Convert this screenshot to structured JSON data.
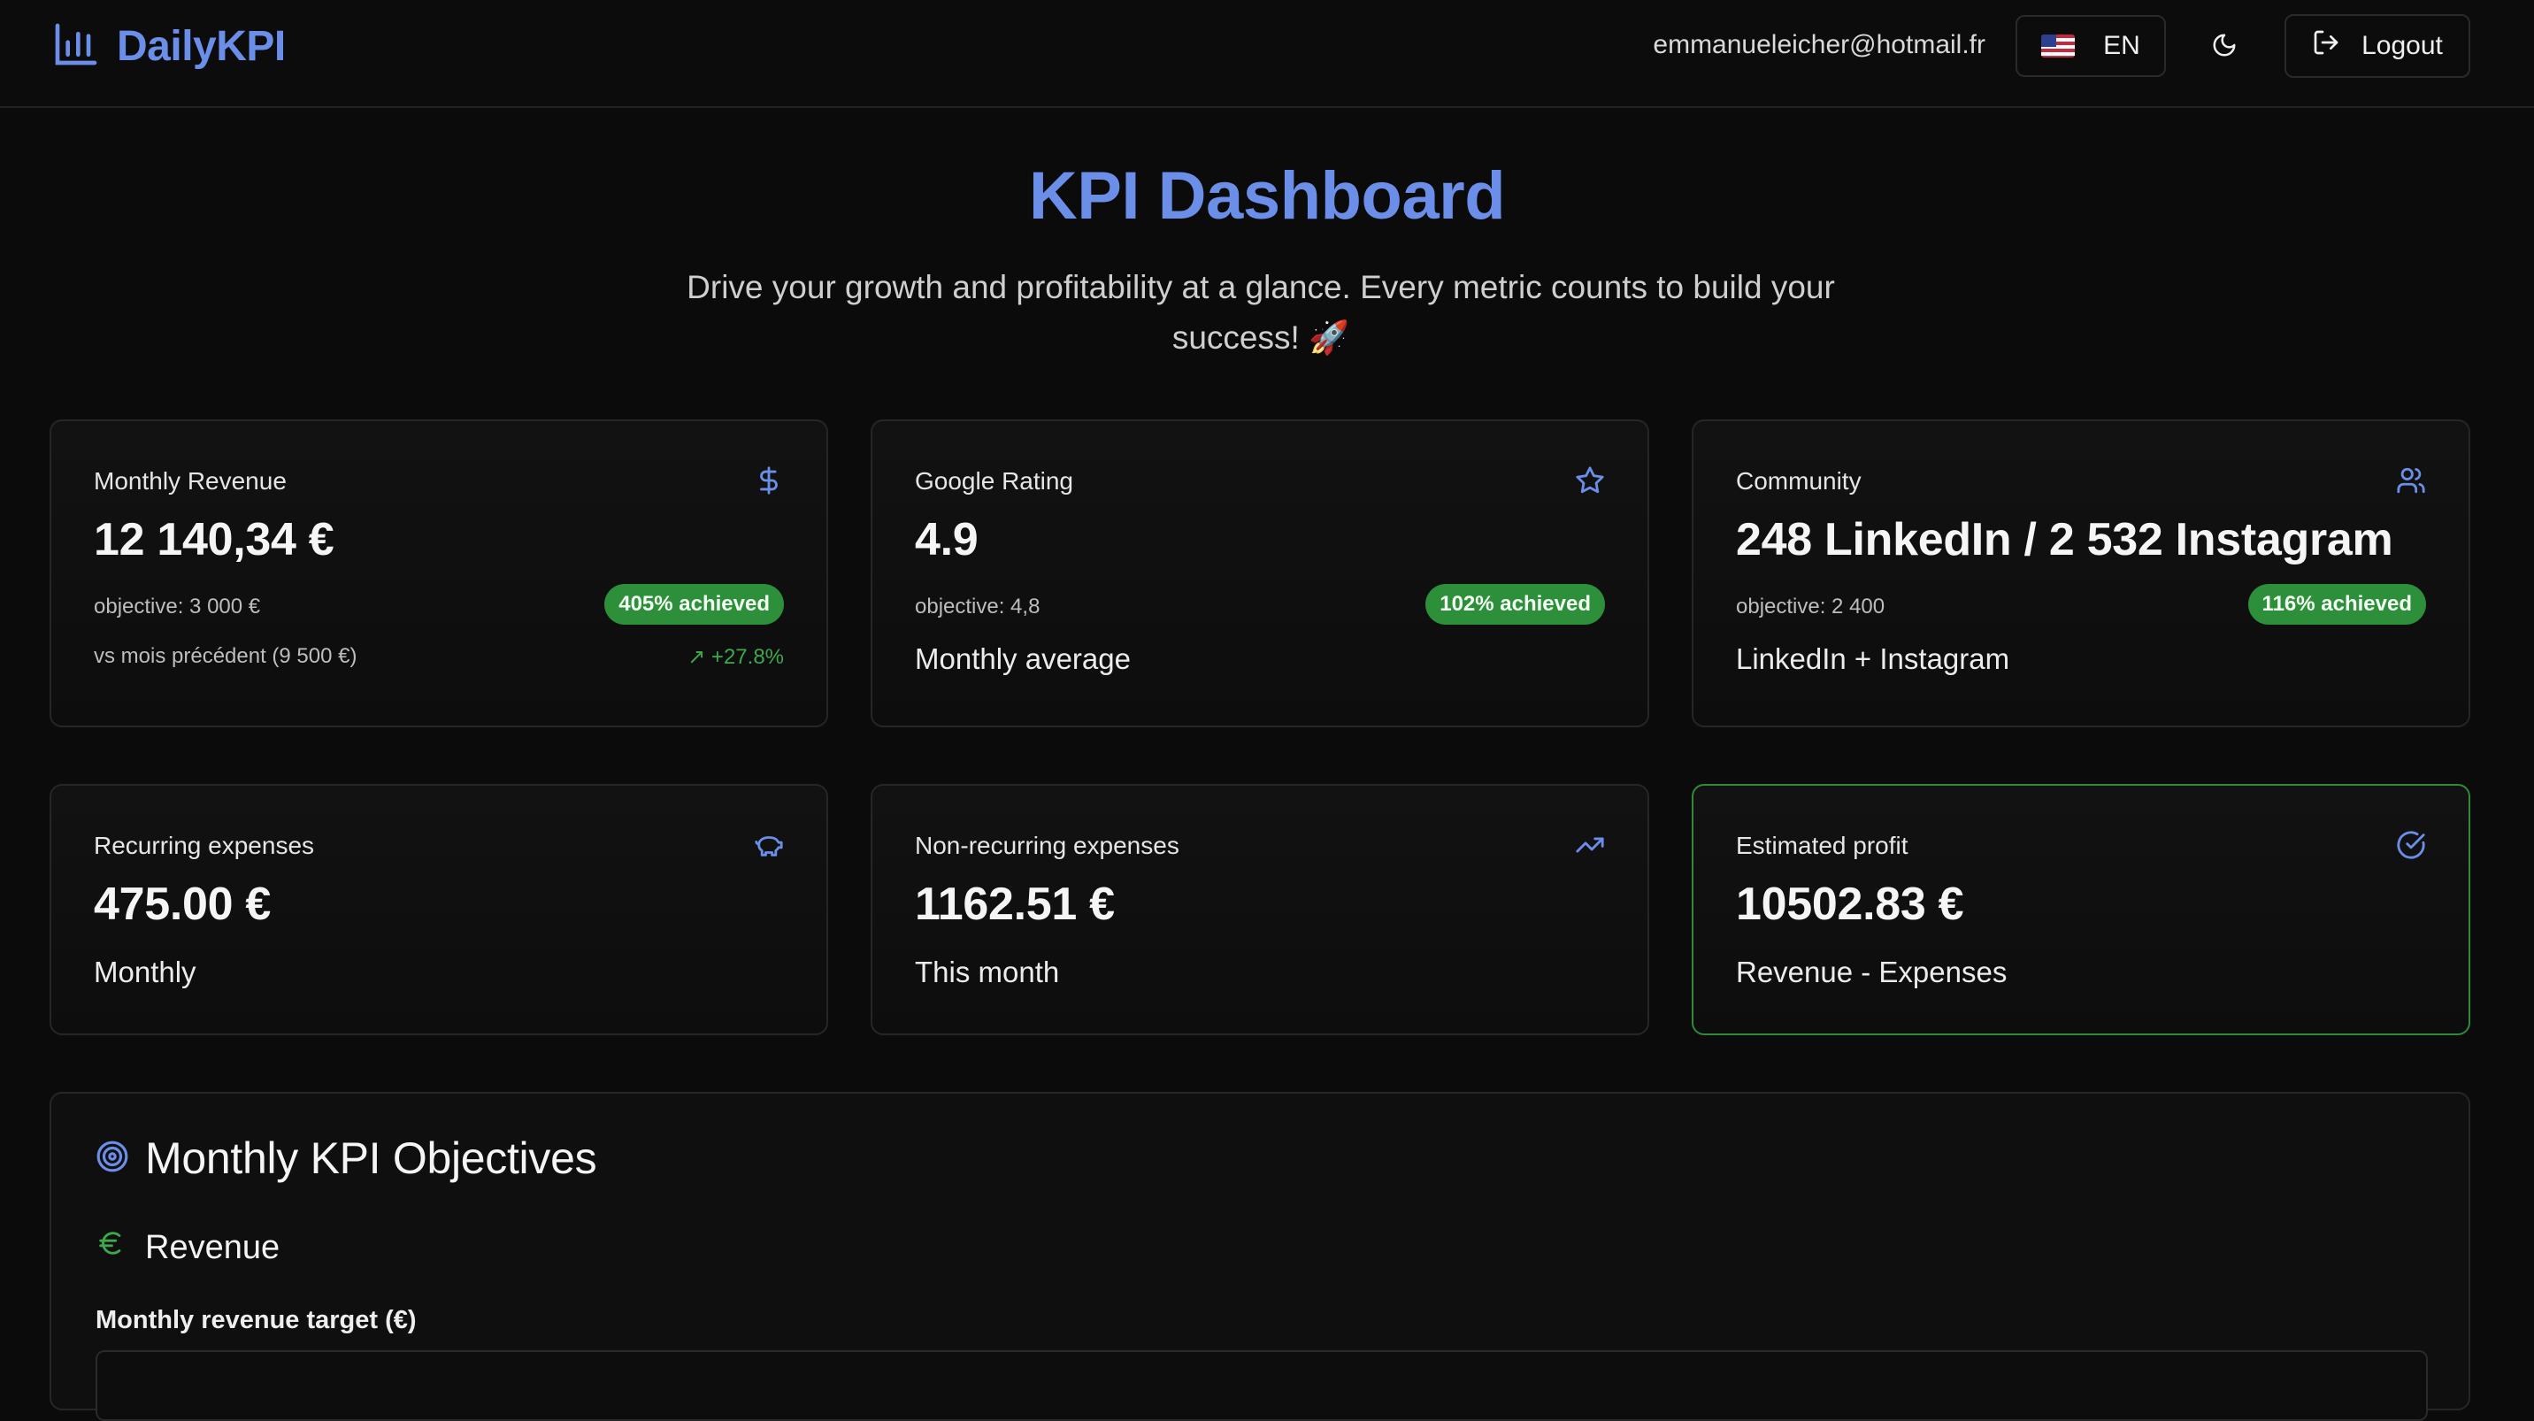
{
  "app": {
    "brand_name": "DailyKPI",
    "user_email": "emmanueleicher@hotmail.fr",
    "language_label": "EN",
    "logout_label": "Logout",
    "accent_color": "#6b8ee8",
    "success_color": "#2e8f3b"
  },
  "hero": {
    "title": "KPI Dashboard",
    "subtitle": "Drive your growth and profitability at a glance. Every metric counts to build your success! 🚀"
  },
  "cards": {
    "revenue": {
      "label": "Monthly Revenue",
      "icon": "dollar-icon",
      "value": "12 140,34 €",
      "objective": "objective: 3 000 €",
      "badge": "405% achieved",
      "compare": "vs mois précédent (9 500 €)",
      "delta": "↗ +27.8%"
    },
    "rating": {
      "label": "Google Rating",
      "icon": "star-icon",
      "value": "4.9",
      "objective": "objective: 4,8",
      "badge": "102% achieved",
      "note": "Monthly average"
    },
    "community": {
      "label": "Community",
      "icon": "users-icon",
      "value": "248 LinkedIn / 2 532 Instagram",
      "objective": "objective: 2 400",
      "badge": "116% achieved",
      "note": "LinkedIn + Instagram"
    },
    "recurring": {
      "label": "Recurring expenses",
      "icon": "piggy-bank-icon",
      "value": "475.00 €",
      "note": "Monthly"
    },
    "nonrecurring": {
      "label": "Non-recurring expenses",
      "icon": "trending-up-icon",
      "value": "1162.51 €",
      "note": "This month"
    },
    "profit": {
      "label": "Estimated profit",
      "icon": "check-circle-icon",
      "value": "10502.83 €",
      "note": "Revenue - Expenses"
    }
  },
  "objectives": {
    "title": "Monthly KPI Objectives",
    "section_revenue": "Revenue",
    "revenue_target_label": "Monthly revenue target (€)"
  }
}
